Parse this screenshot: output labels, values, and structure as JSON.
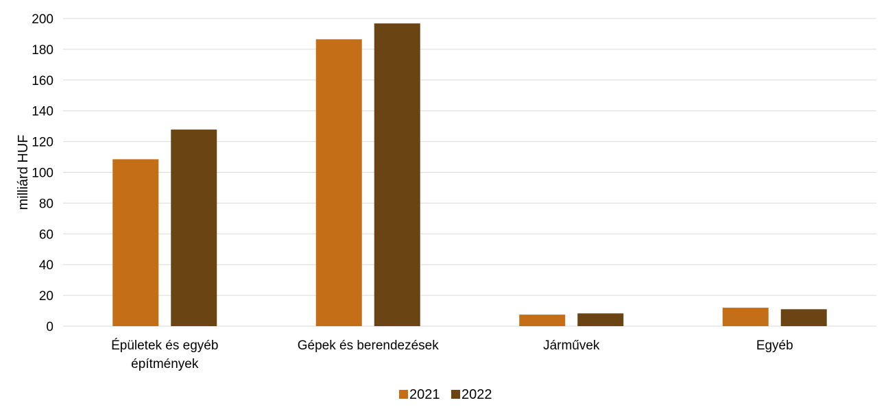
{
  "chart_data": {
    "type": "bar",
    "categories": [
      [
        "Épületek és egyéb",
        "építmények"
      ],
      [
        "Gépek és berendezések"
      ],
      [
        "Járművek"
      ],
      [
        "Egyéb"
      ]
    ],
    "series": [
      {
        "name": "2021",
        "values": [
          108.5,
          186.5,
          7.5,
          12.0
        ],
        "color": "#C46F18"
      },
      {
        "name": "2022",
        "values": [
          127.8,
          196.8,
          8.3,
          11.0
        ],
        "color": "#6B4414"
      }
    ],
    "ylabel": "milliárd HUF",
    "ylim": [
      0,
      200
    ],
    "yticks": [
      0,
      20,
      40,
      60,
      80,
      100,
      120,
      140,
      160,
      180,
      200
    ],
    "grid": true,
    "legend_position": "bottom"
  }
}
